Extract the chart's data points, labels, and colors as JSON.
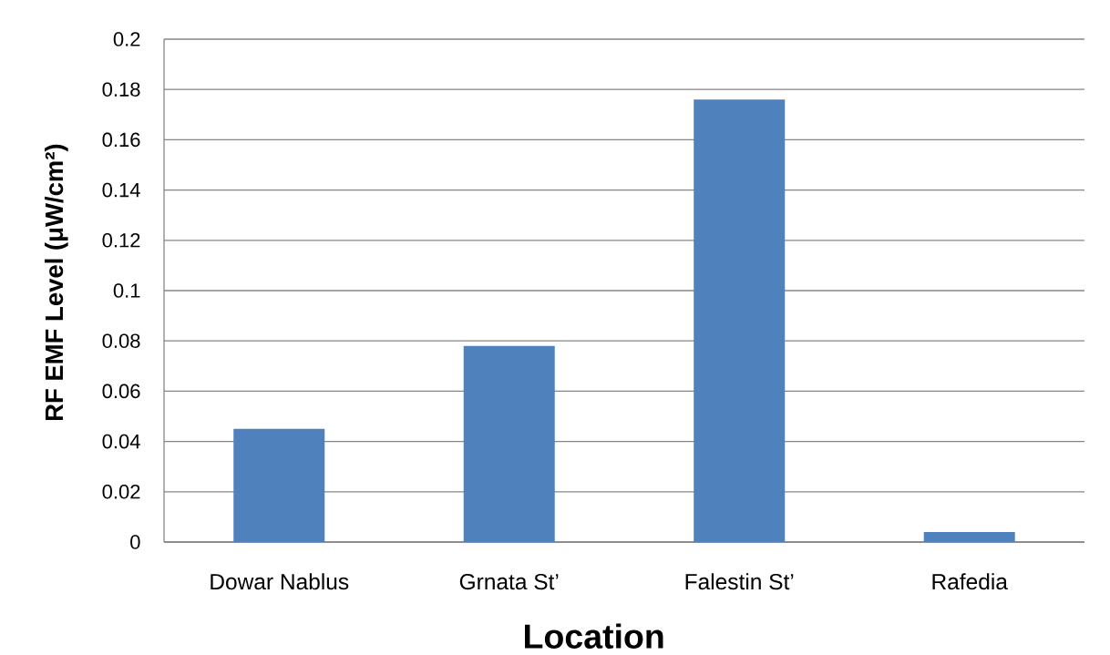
{
  "chart_data": {
    "type": "bar",
    "xlabel": "Location",
    "ylabel": "RF EMF Level (μW/cm²)",
    "categories": [
      "Dowar Nablus",
      "Grnata St’",
      "Falestin St’",
      "Rafedia"
    ],
    "values": [
      0.045,
      0.078,
      0.176,
      0.004
    ],
    "color": "#4f81bd",
    "ylim": [
      0,
      0.2
    ],
    "yticks": [
      0,
      0.02,
      0.04,
      0.06,
      0.08,
      0.1,
      0.12,
      0.14,
      0.16,
      0.18,
      0.2
    ],
    "grid": "y"
  }
}
